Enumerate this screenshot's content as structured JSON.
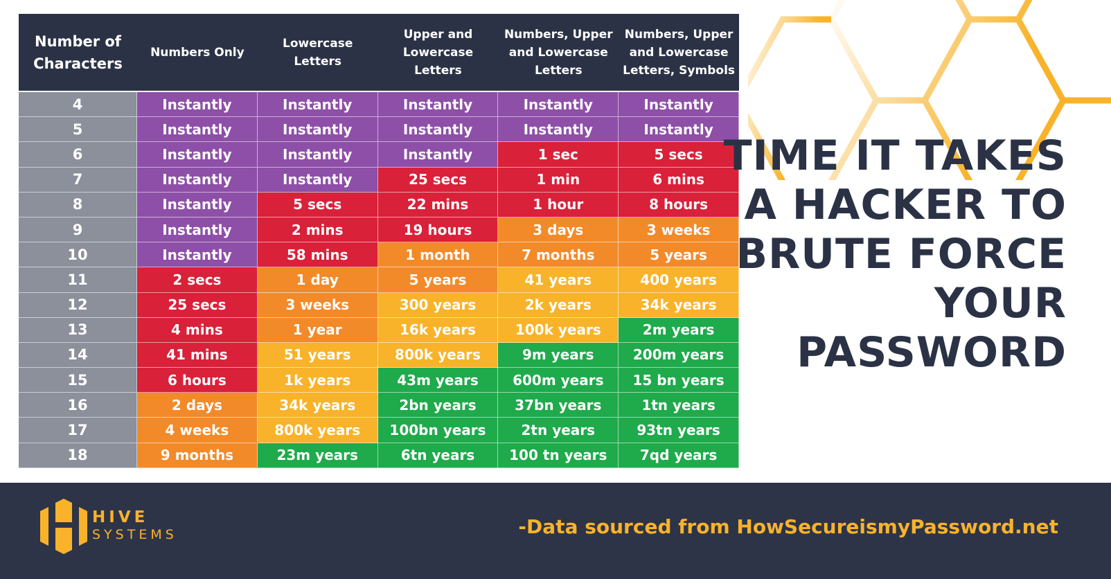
{
  "chart_data": {
    "type": "table",
    "title": "TIME IT TAKES A HACKER TO BRUTE FORCE YOUR PASSWORD",
    "columns": [
      "Number of Characters",
      "Numbers Only",
      "Lowercase Letters",
      "Upper and Lowercase Letters",
      "Numbers, Upper and Lowercase Letters",
      "Numbers, Upper and Lowercase Letters, Symbols"
    ],
    "rows": [
      {
        "n": "4",
        "values": [
          "Instantly",
          "Instantly",
          "Instantly",
          "Instantly",
          "Instantly"
        ],
        "levels": [
          "P",
          "P",
          "P",
          "P",
          "P"
        ]
      },
      {
        "n": "5",
        "values": [
          "Instantly",
          "Instantly",
          "Instantly",
          "Instantly",
          "Instantly"
        ],
        "levels": [
          "P",
          "P",
          "P",
          "P",
          "P"
        ]
      },
      {
        "n": "6",
        "values": [
          "Instantly",
          "Instantly",
          "Instantly",
          "1 sec",
          "5 secs"
        ],
        "levels": [
          "P",
          "P",
          "P",
          "R",
          "R"
        ]
      },
      {
        "n": "7",
        "values": [
          "Instantly",
          "Instantly",
          "25 secs",
          "1 min",
          "6 mins"
        ],
        "levels": [
          "P",
          "P",
          "R",
          "R",
          "R"
        ]
      },
      {
        "n": "8",
        "values": [
          "Instantly",
          "5 secs",
          "22 mins",
          "1 hour",
          "8 hours"
        ],
        "levels": [
          "P",
          "R",
          "R",
          "R",
          "R"
        ]
      },
      {
        "n": "9",
        "values": [
          "Instantly",
          "2 mins",
          "19 hours",
          "3 days",
          "3 weeks"
        ],
        "levels": [
          "P",
          "R",
          "R",
          "O",
          "O"
        ]
      },
      {
        "n": "10",
        "values": [
          "Instantly",
          "58 mins",
          "1 month",
          "7 months",
          "5 years"
        ],
        "levels": [
          "P",
          "R",
          "O",
          "O",
          "O"
        ]
      },
      {
        "n": "11",
        "values": [
          "2 secs",
          "1 day",
          "5 years",
          "41 years",
          "400 years"
        ],
        "levels": [
          "R",
          "O",
          "O",
          "Y",
          "Y"
        ]
      },
      {
        "n": "12",
        "values": [
          "25 secs",
          "3 weeks",
          "300 years",
          "2k years",
          "34k years"
        ],
        "levels": [
          "R",
          "O",
          "Y",
          "Y",
          "Y"
        ]
      },
      {
        "n": "13",
        "values": [
          "4 mins",
          "1 year",
          "16k years",
          "100k years",
          "2m years"
        ],
        "levels": [
          "R",
          "O",
          "Y",
          "Y",
          "G"
        ]
      },
      {
        "n": "14",
        "values": [
          "41 mins",
          "51 years",
          "800k years",
          "9m years",
          "200m years"
        ],
        "levels": [
          "R",
          "Y",
          "Y",
          "G",
          "G"
        ]
      },
      {
        "n": "15",
        "values": [
          "6 hours",
          "1k years",
          "43m years",
          "600m years",
          "15 bn years"
        ],
        "levels": [
          "R",
          "Y",
          "G",
          "G",
          "G"
        ]
      },
      {
        "n": "16",
        "values": [
          "2 days",
          "34k years",
          "2bn years",
          "37bn years",
          "1tn years"
        ],
        "levels": [
          "O",
          "Y",
          "G",
          "G",
          "G"
        ]
      },
      {
        "n": "17",
        "values": [
          "4 weeks",
          "800k years",
          "100bn years",
          "2tn years",
          "93tn years"
        ],
        "levels": [
          "O",
          "Y",
          "G",
          "G",
          "G"
        ]
      },
      {
        "n": "18",
        "values": [
          "9 months",
          "23m years",
          "6tn years",
          "100 tn years",
          "7qd years"
        ],
        "levels": [
          "O",
          "G",
          "G",
          "G",
          "G"
        ]
      }
    ],
    "level_colors": {
      "P": "#8e4fa8",
      "R": "#d9213a",
      "O": "#f28a2a",
      "Y": "#f8b32a",
      "G": "#1faa4c"
    }
  },
  "title_lines": [
    "TIME IT TAKES",
    "A HACKER TO",
    "BRUTE FORCE",
    "YOUR",
    "PASSWORD"
  ],
  "footer": {
    "logo_line1": "HIVE",
    "logo_line2": "SYSTEMS",
    "source": "-Data sourced from HowSecureismyPassword.net"
  },
  "colors": {
    "header": "#2b3245",
    "footer": "#2e3447",
    "accent": "#f8b32a",
    "index_column": "#8b909b"
  }
}
